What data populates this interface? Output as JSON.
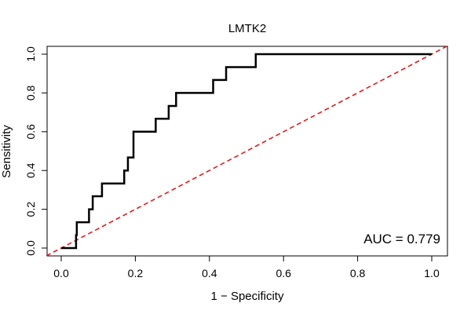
{
  "chart_data": {
    "type": "line",
    "title": "LMTK2",
    "xlabel": "1 − Specificity",
    "ylabel": "Sensitivity",
    "xlim": [
      0,
      1
    ],
    "ylim": [
      0,
      1
    ],
    "x_ticks": [
      "0.0",
      "0.2",
      "0.4",
      "0.6",
      "0.8",
      "1.0"
    ],
    "y_ticks": [
      "0.0",
      "0.2",
      "0.4",
      "0.6",
      "0.8",
      "1.0"
    ],
    "grid": false,
    "annotation": "AUC = 0.779",
    "reference_line": {
      "from": [
        0,
        0
      ],
      "to": [
        1,
        1
      ],
      "color": "#e31a1c",
      "style": "dashed"
    },
    "series": [
      {
        "color": "#000000",
        "x": [
          0.0,
          0.04,
          0.04,
          0.042,
          0.042,
          0.075,
          0.075,
          0.085,
          0.085,
          0.11,
          0.11,
          0.17,
          0.17,
          0.18,
          0.18,
          0.195,
          0.195,
          0.255,
          0.255,
          0.29,
          0.29,
          0.31,
          0.31,
          0.41,
          0.41,
          0.445,
          0.445,
          0.525,
          0.525,
          1.0
        ],
        "y": [
          0.0,
          0.0,
          0.067,
          0.067,
          0.133,
          0.133,
          0.2,
          0.2,
          0.267,
          0.267,
          0.333,
          0.333,
          0.4,
          0.4,
          0.467,
          0.467,
          0.6,
          0.6,
          0.667,
          0.667,
          0.733,
          0.733,
          0.8,
          0.8,
          0.867,
          0.867,
          0.933,
          0.933,
          1.0,
          1.0
        ]
      }
    ]
  }
}
